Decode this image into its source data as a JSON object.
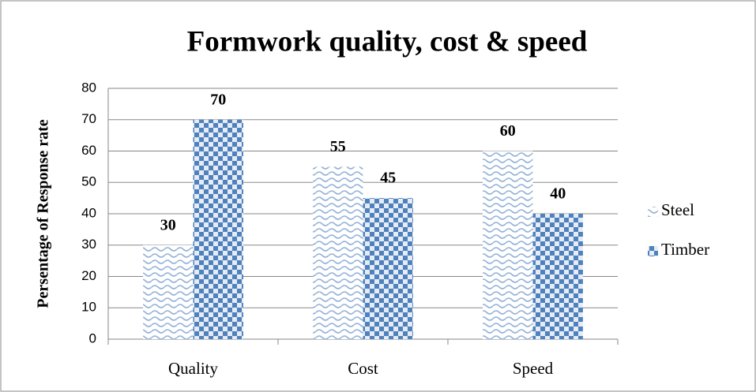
{
  "chart_data": {
    "type": "bar",
    "title": "Formwork quality, cost & speed",
    "y_label": "Persentage of Response rate",
    "categories": [
      "Quality",
      "Cost",
      "Speed"
    ],
    "series": [
      {
        "name": "Steel",
        "color": "#4f81bd",
        "pattern": "wave",
        "values": [
          30,
          55,
          60
        ]
      },
      {
        "name": "Timber",
        "color": "#4f81bd",
        "pattern": "checker",
        "values": [
          70,
          45,
          40
        ]
      }
    ],
    "ylim": [
      0,
      80
    ],
    "yticks": [
      0,
      10,
      20,
      30,
      40,
      50,
      60,
      70,
      80
    ],
    "grid": true,
    "legend": "right"
  }
}
